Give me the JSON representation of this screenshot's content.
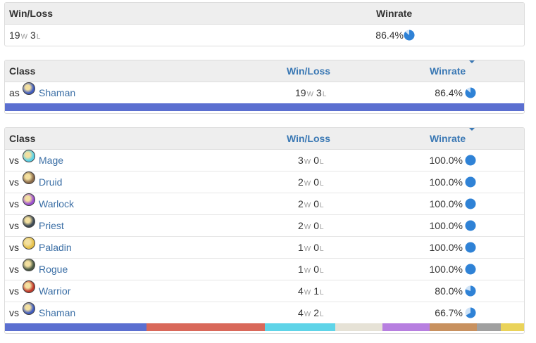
{
  "summary": {
    "col_winloss": "Win/Loss",
    "col_winrate": "Winrate",
    "wins": "19",
    "losses": "3",
    "w_unit": "W",
    "l_unit": "L",
    "winrate": "86.4%",
    "winrate_value": 86.4
  },
  "as_table": {
    "col_class": "Class",
    "col_winloss": "Win/Loss",
    "col_winrate": "Winrate",
    "rows": [
      {
        "prefix": "as",
        "class": "Shaman",
        "wins": "19",
        "losses": "3",
        "winrate": "86.4%",
        "winrate_value": 86.4,
        "icon": "shaman-icon",
        "color": "#3f5bbf"
      }
    ],
    "bar_color": "#5b6fd0"
  },
  "vs_table": {
    "col_class": "Class",
    "col_winloss": "Win/Loss",
    "col_winrate": "Winrate",
    "rows": [
      {
        "prefix": "vs",
        "class": "Mage",
        "wins": "3",
        "losses": "0",
        "winrate": "100.0%",
        "winrate_value": 100,
        "icon": "mage-icon",
        "color": "#5ad2e8"
      },
      {
        "prefix": "vs",
        "class": "Druid",
        "wins": "2",
        "losses": "0",
        "winrate": "100.0%",
        "winrate_value": 100,
        "icon": "druid-icon",
        "color": "#8a6a4a"
      },
      {
        "prefix": "vs",
        "class": "Warlock",
        "wins": "2",
        "losses": "0",
        "winrate": "100.0%",
        "winrate_value": 100,
        "icon": "warlock-icon",
        "color": "#9b4fd1"
      },
      {
        "prefix": "vs",
        "class": "Priest",
        "wins": "2",
        "losses": "0",
        "winrate": "100.0%",
        "winrate_value": 100,
        "icon": "priest-icon",
        "color": "#3d4a55"
      },
      {
        "prefix": "vs",
        "class": "Paladin",
        "wins": "1",
        "losses": "0",
        "winrate": "100.0%",
        "winrate_value": 100,
        "icon": "paladin-icon",
        "color": "#e5c04a"
      },
      {
        "prefix": "vs",
        "class": "Rogue",
        "wins": "1",
        "losses": "0",
        "winrate": "100.0%",
        "winrate_value": 100,
        "icon": "rogue-icon",
        "color": "#4a5a45"
      },
      {
        "prefix": "vs",
        "class": "Warrior",
        "wins": "4",
        "losses": "1",
        "winrate": "80.0%",
        "winrate_value": 80,
        "icon": "warrior-icon",
        "color": "#c0392b"
      },
      {
        "prefix": "vs",
        "class": "Shaman",
        "wins": "4",
        "losses": "2",
        "winrate": "66.7%",
        "winrate_value": 66.7,
        "icon": "shaman-icon",
        "color": "#3f5bbf"
      }
    ],
    "bar_segments": [
      {
        "class": "Shaman",
        "games": 6,
        "color": "#5b6fd0"
      },
      {
        "class": "Warrior",
        "games": 5,
        "color": "#d9685a"
      },
      {
        "class": "Mage",
        "games": 3,
        "color": "#5fd4e8"
      },
      {
        "class": "Priest",
        "games": 2,
        "color": "#e6e2d6"
      },
      {
        "class": "Warlock",
        "games": 2,
        "color": "#b77fe0"
      },
      {
        "class": "Druid",
        "games": 2,
        "color": "#c8915f"
      },
      {
        "class": "Rogue",
        "games": 1,
        "color": "#a0a0a0"
      },
      {
        "class": "Paladin",
        "games": 1,
        "color": "#ead35a"
      }
    ]
  },
  "pie_color": "#2f82d6"
}
